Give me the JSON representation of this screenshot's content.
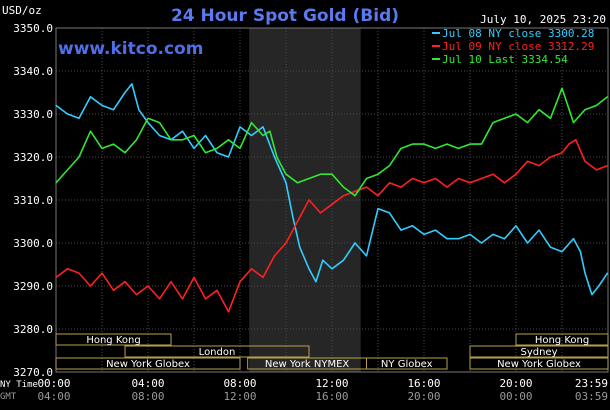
{
  "header": {
    "title": "24 Hour Spot Gold (Bid)",
    "unit": "USD/oz",
    "date": "July 10, 2025 23:20",
    "watermark": "www.kitco.com"
  },
  "colors": {
    "background": "#000000",
    "grid": "#4a4a4a",
    "title": "#5b79f0",
    "watermark": "#4f6ee8",
    "text": "#ffffff",
    "dim_text": "#9a9a9a",
    "nymex_shade": "#262626",
    "session_border": "#b8a04a"
  },
  "sessions": [
    {
      "label": "Hong Kong",
      "start": "00:00",
      "end": "05:00",
      "row": 1
    },
    {
      "label": "London",
      "start": "03:00",
      "end": "11:00",
      "row": 2
    },
    {
      "label": "New York Globex",
      "start": "00:00",
      "end": "08:00",
      "row": 3
    },
    {
      "label": "New York NYMEX",
      "start": "08:20",
      "end": "13:30",
      "row": 3
    },
    {
      "label": "NY Globex",
      "start": "13:30",
      "end": "17:00",
      "row": 3
    },
    {
      "label": "Hong Kong",
      "start": "20:00",
      "end": "24:00",
      "row": 1
    },
    {
      "label": "Sydney",
      "start": "18:00",
      "end": "24:00",
      "row": 2
    },
    {
      "label": "New York Globex",
      "start": "18:00",
      "end": "24:00",
      "row": 3
    }
  ],
  "time_axis": {
    "ny_label": "NY Time",
    "gmt_label": "GMT",
    "ny_ticks": [
      "00:00",
      "04:00",
      "08:00",
      "12:00",
      "16:00",
      "20:00",
      "23:59"
    ],
    "gmt_ticks": [
      "04:00",
      "08:00",
      "12:00",
      "16:00",
      "20:00",
      "00:00",
      "03:59"
    ]
  },
  "chart_data": {
    "type": "line",
    "title": "24 Hour Spot Gold (Bid)",
    "ylabel": "USD/oz",
    "xlabel": "NY Time",
    "ylim": [
      3270,
      3350
    ],
    "xlim": [
      0,
      24
    ],
    "grid": true,
    "legend_position": "top-right",
    "y_ticks": [
      "3270.0",
      "3280.0",
      "3290.0",
      "3300.0",
      "3310.0",
      "3320.0",
      "3330.0",
      "3340.0",
      "3350.0"
    ],
    "series": [
      {
        "name": "Jul 08 NY close 3300.28",
        "color": "#33ccff",
        "x": [
          0,
          0.5,
          1,
          1.5,
          2,
          2.5,
          3,
          3.3,
          3.6,
          4,
          4.5,
          5,
          5.5,
          6,
          6.5,
          7,
          7.5,
          8,
          8.5,
          9,
          9.5,
          10,
          10.3,
          10.6,
          11,
          11.3,
          11.6,
          12,
          12.5,
          13,
          13.5,
          14,
          14.5,
          15,
          15.5,
          16,
          16.5,
          17,
          17.5,
          18,
          18.5,
          19,
          19.5,
          20,
          20.5,
          21,
          21.5,
          22,
          22.5,
          22.8,
          23,
          23.3,
          23.6,
          23.98
        ],
        "values": [
          3332,
          3330,
          3329,
          3334,
          3332,
          3331,
          3335,
          3337,
          3331,
          3328,
          3325,
          3324,
          3326,
          3322,
          3325,
          3321,
          3320,
          3327,
          3325,
          3327,
          3320,
          3314,
          3306,
          3299,
          3294,
          3291,
          3296,
          3294,
          3296,
          3300,
          3297,
          3308,
          3307,
          3303,
          3304,
          3302,
          3303,
          3301,
          3301,
          3302,
          3300,
          3302,
          3301,
          3304,
          3300,
          3303,
          3299,
          3298,
          3301,
          3298,
          3293,
          3288,
          3290,
          3293
        ]
      },
      {
        "name": "Jul 09 NY close 3312.29",
        "color": "#ff2020",
        "x": [
          0,
          0.5,
          1,
          1.5,
          2,
          2.5,
          3,
          3.5,
          4,
          4.5,
          5,
          5.5,
          6,
          6.5,
          7,
          7.5,
          8,
          8.5,
          9,
          9.5,
          10,
          10.3,
          10.6,
          11,
          11.5,
          12,
          12.5,
          13,
          13.5,
          14,
          14.5,
          15,
          15.5,
          16,
          16.5,
          17,
          17.5,
          18,
          18.5,
          19,
          19.5,
          20,
          20.5,
          21,
          21.5,
          22,
          22.3,
          22.6,
          23,
          23.5,
          23.98
        ],
        "values": [
          3292,
          3294,
          3293,
          3290,
          3293,
          3289,
          3291,
          3288,
          3290,
          3287,
          3291,
          3287,
          3292,
          3287,
          3289,
          3284,
          3291,
          3294,
          3292,
          3297,
          3300,
          3303,
          3306,
          3310,
          3307,
          3309,
          3311,
          3312,
          3313,
          3311,
          3314,
          3313,
          3315,
          3314,
          3315,
          3313,
          3315,
          3314,
          3315,
          3316,
          3314,
          3316,
          3319,
          3318,
          3320,
          3321,
          3323,
          3324,
          3319,
          3317,
          3318
        ]
      },
      {
        "name": "Jul 10 Last 3334.54",
        "color": "#33e633",
        "x": [
          0,
          0.5,
          1,
          1.5,
          2,
          2.5,
          3,
          3.5,
          4,
          4.5,
          5,
          5.5,
          6,
          6.5,
          7,
          7.5,
          8,
          8.5,
          9,
          9.3,
          9.6,
          10,
          10.5,
          11,
          11.5,
          12,
          12.5,
          13,
          13.5,
          14,
          14.5,
          15,
          15.5,
          16,
          16.5,
          17,
          17.5,
          18,
          18.5,
          19,
          19.5,
          20,
          20.5,
          21,
          21.5,
          22,
          22.5,
          23,
          23.5,
          23.98
        ],
        "values": [
          3314,
          3317,
          3320,
          3326,
          3322,
          3323,
          3321,
          3324,
          3329,
          3328,
          3324,
          3324,
          3325,
          3321,
          3322,
          3324,
          3322,
          3328,
          3325,
          3326,
          3320,
          3316,
          3314,
          3315,
          3316,
          3316,
          3313,
          3311,
          3315,
          3316,
          3318,
          3322,
          3323,
          3323,
          3322,
          3323,
          3322,
          3323,
          3323,
          3328,
          3329,
          3330,
          3328,
          3331,
          3329,
          3336,
          3328,
          3331,
          3332,
          3334
        ]
      }
    ]
  }
}
